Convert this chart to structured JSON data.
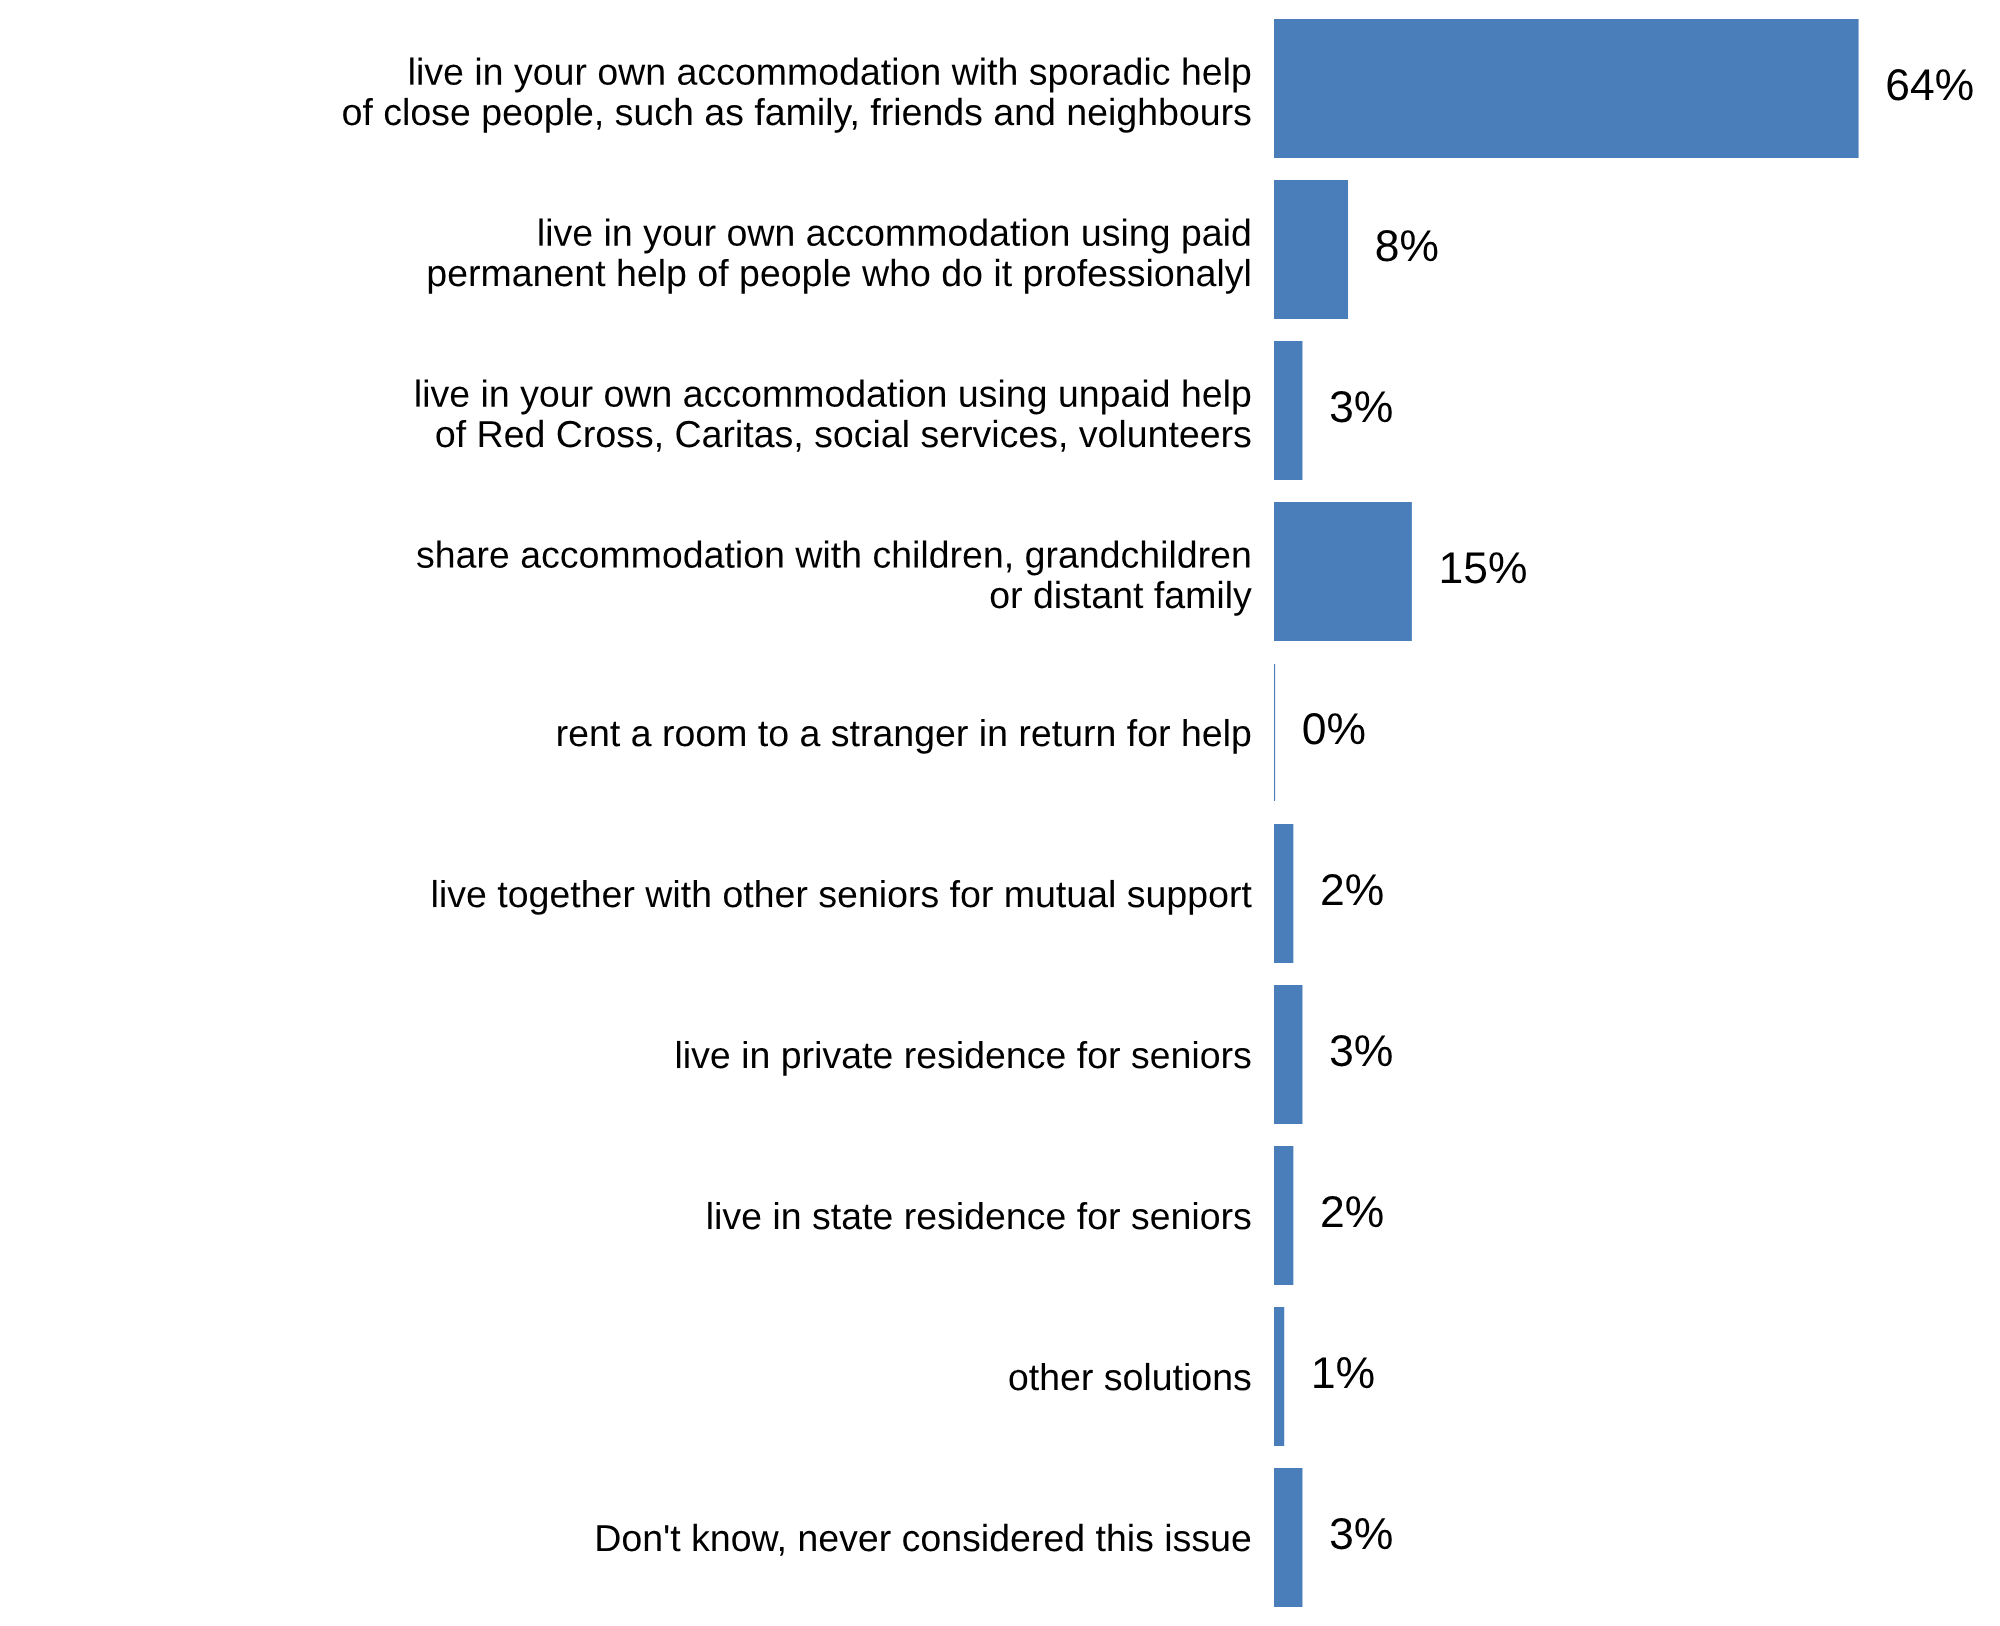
{
  "chart_data": {
    "type": "bar",
    "orientation": "horizontal",
    "categories": [
      "live in your own accommodation with sporadic help\nof close people, such as family, friends and neighbours",
      "live in your own accommodation using paid\npermanent help of people who do it professionalyl",
      "live in your own accommodation using unpaid help\nof Red Cross, Caritas, social services, volunteers",
      "share accommodation with children, grandchildren\nor distant family",
      "rent a room to a stranger in return for help",
      "live together with other seniors for mutual support",
      "live in private residence for seniors",
      "live in state residence for seniors",
      "other solutions",
      "Don't know, never considered this issue"
    ],
    "values": [
      64,
      8,
      3,
      15,
      0,
      2,
      3,
      2,
      1,
      3
    ],
    "value_labels": [
      "64%",
      "8%",
      "3%",
      "15%",
      "0%",
      "2%",
      "3%",
      "2%",
      "1%",
      "3%"
    ],
    "color": "#4a7ebb"
  }
}
